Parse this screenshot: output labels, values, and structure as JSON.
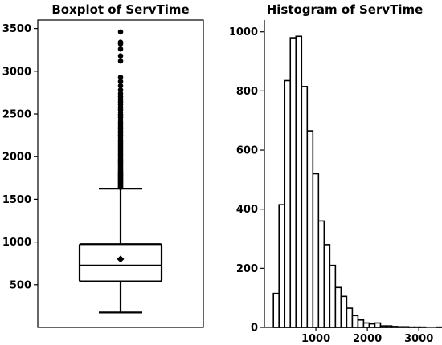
{
  "chart_data": [
    {
      "type": "boxplot",
      "title": "Boxplot of ServTime",
      "xlabel": "",
      "ylabel": "",
      "ylim": [
        0,
        3600
      ],
      "yticks": [
        500,
        1000,
        1500,
        2000,
        2500,
        3000,
        3500
      ],
      "ytick_labels": [
        "500",
        "1000",
        "1500",
        "2000",
        "2500",
        "3000",
        "3500"
      ],
      "whisker_low": 175,
      "q1": 540,
      "median": 725,
      "q3": 975,
      "whisker_high": 1625,
      "mean": 800,
      "fliers": [
        1640,
        1650,
        1660,
        1670,
        1680,
        1690,
        1700,
        1710,
        1720,
        1730,
        1740,
        1750,
        1760,
        1770,
        1780,
        1790,
        1800,
        1810,
        1820,
        1830,
        1845,
        1860,
        1875,
        1890,
        1905,
        1920,
        1935,
        1950,
        1965,
        1980,
        2000,
        2020,
        2040,
        2060,
        2080,
        2100,
        2120,
        2140,
        2160,
        2180,
        2200,
        2225,
        2250,
        2275,
        2300,
        2325,
        2350,
        2375,
        2400,
        2430,
        2460,
        2490,
        2520,
        2550,
        2580,
        2610,
        2640,
        2670,
        2700,
        2740,
        2780,
        2830,
        2880,
        2930,
        3120,
        3180,
        3260,
        3320,
        3340,
        3460
      ]
    },
    {
      "type": "histogram",
      "title": "Histogram of ServTime",
      "xlabel": "",
      "ylabel": "",
      "xlim": [
        0,
        3450
      ],
      "ylim": [
        0,
        1040
      ],
      "xticks": [
        1000,
        2000,
        3000
      ],
      "xtick_labels": [
        "1000",
        "2000",
        "3000"
      ],
      "yticks": [
        0,
        200,
        400,
        600,
        800,
        1000
      ],
      "ytick_labels": [
        "0",
        "200",
        "400",
        "600",
        "800",
        "1000"
      ],
      "bin_start": 175,
      "bin_width": 109.5,
      "counts": [
        115,
        415,
        835,
        980,
        985,
        815,
        665,
        520,
        360,
        280,
        210,
        135,
        105,
        65,
        40,
        25,
        15,
        12,
        15,
        5,
        5,
        3,
        2,
        2,
        1,
        1,
        1,
        0,
        0,
        1
      ]
    }
  ]
}
